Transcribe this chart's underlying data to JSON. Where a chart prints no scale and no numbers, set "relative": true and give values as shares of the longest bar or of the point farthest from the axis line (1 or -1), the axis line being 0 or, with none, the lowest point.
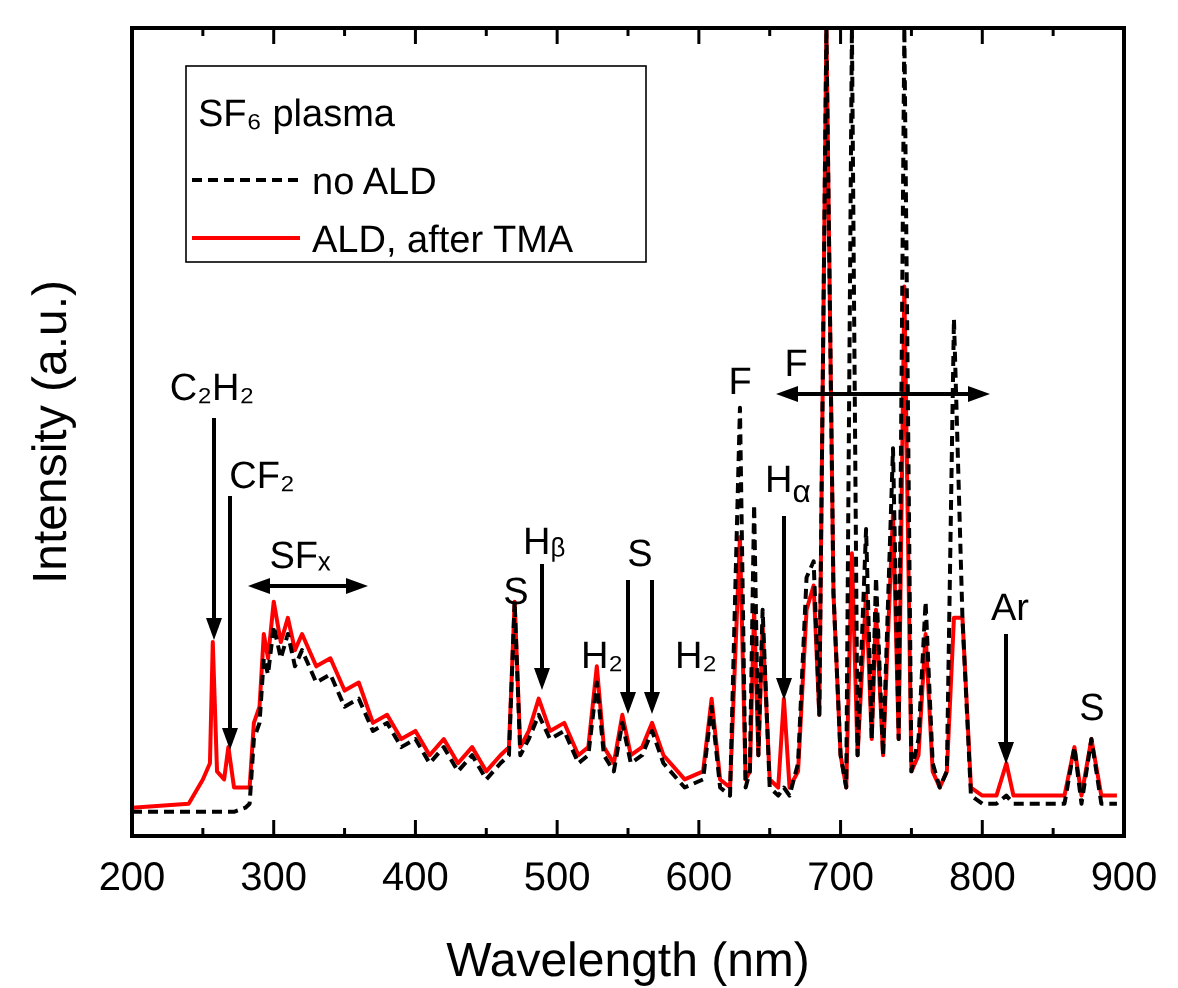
{
  "chart_data": {
    "type": "line",
    "relative": true,
    "xlabel": "Wavelength (nm)",
    "ylabel": "Intensity (a.u.)",
    "legend_title": "SF₆ plasma",
    "legend": "top left",
    "xlim": [
      200,
      900
    ],
    "xticks": [
      200,
      300,
      400,
      500,
      600,
      700,
      800,
      900
    ],
    "x": [
      200,
      240,
      250,
      255,
      257,
      260,
      265,
      268,
      272,
      280,
      283,
      286,
      290,
      293,
      296,
      300,
      305,
      310,
      315,
      320,
      330,
      340,
      350,
      360,
      370,
      380,
      390,
      400,
      410,
      420,
      430,
      440,
      450,
      460,
      466,
      470,
      474,
      480,
      487,
      495,
      505,
      515,
      522,
      528,
      533,
      540,
      546,
      552,
      560,
      567,
      575,
      590,
      603,
      609,
      615,
      622,
      629,
      633,
      636,
      639,
      642,
      645,
      650,
      656,
      660,
      664,
      670,
      676,
      681,
      685,
      690,
      695,
      700,
      704,
      708,
      712,
      718,
      722,
      725,
      730,
      737,
      741,
      745,
      750,
      755,
      760,
      765,
      770,
      775,
      780,
      786,
      792,
      800,
      810,
      817,
      822,
      835,
      850,
      858,
      865,
      870,
      877,
      884,
      895
    ],
    "series": [
      {
        "name": "no ALD",
        "color": "#000000",
        "line_style": "dashed",
        "values": [
          0.03,
          0.03,
          0.03,
          0.03,
          0.03,
          0.03,
          0.03,
          0.03,
          0.03,
          0.035,
          0.04,
          0.12,
          0.14,
          0.22,
          0.2,
          0.26,
          0.22,
          0.25,
          0.21,
          0.23,
          0.19,
          0.2,
          0.16,
          0.17,
          0.13,
          0.14,
          0.11,
          0.12,
          0.09,
          0.11,
          0.08,
          0.1,
          0.07,
          0.09,
          0.1,
          0.29,
          0.1,
          0.12,
          0.15,
          0.12,
          0.13,
          0.09,
          0.1,
          0.19,
          0.1,
          0.08,
          0.14,
          0.09,
          0.1,
          0.13,
          0.09,
          0.06,
          0.07,
          0.16,
          0.06,
          0.05,
          0.53,
          0.06,
          0.08,
          0.41,
          0.1,
          0.28,
          0.06,
          0.05,
          0.06,
          0.05,
          0.09,
          0.32,
          0.34,
          0.15,
          1,
          0.3,
          0.1,
          0.06,
          1,
          0.1,
          0.38,
          0.12,
          0.32,
          0.1,
          0.48,
          0.12,
          1,
          0.08,
          0.12,
          0.29,
          0.09,
          0.06,
          0.08,
          0.64,
          0.27,
          0.05,
          0.04,
          0.04,
          0.05,
          0.04,
          0.04,
          0.04,
          0.04,
          0.11,
          0.04,
          0.12,
          0.04,
          0.04
        ]
      },
      {
        "name": "ALD, after TMA",
        "color": "#ff0000",
        "line_style": "solid",
        "values": [
          0.035,
          0.04,
          0.07,
          0.09,
          0.24,
          0.08,
          0.07,
          0.11,
          0.06,
          0.06,
          0.06,
          0.14,
          0.16,
          0.25,
          0.22,
          0.29,
          0.24,
          0.27,
          0.23,
          0.25,
          0.21,
          0.22,
          0.18,
          0.19,
          0.14,
          0.15,
          0.12,
          0.13,
          0.1,
          0.12,
          0.09,
          0.11,
          0.08,
          0.1,
          0.11,
          0.29,
          0.11,
          0.13,
          0.17,
          0.13,
          0.14,
          0.1,
          0.11,
          0.21,
          0.11,
          0.09,
          0.15,
          0.1,
          0.11,
          0.14,
          0.1,
          0.07,
          0.08,
          0.17,
          0.07,
          0.06,
          0.37,
          0.07,
          0.08,
          0.28,
          0.1,
          0.26,
          0.07,
          0.06,
          0.17,
          0.06,
          0.08,
          0.28,
          0.31,
          0.15,
          1,
          0.3,
          0.1,
          0.06,
          0.35,
          0.1,
          0.3,
          0.12,
          0.28,
          0.1,
          0.4,
          0.12,
          0.68,
          0.08,
          0.1,
          0.25,
          0.08,
          0.06,
          0.08,
          0.27,
          0.27,
          0.06,
          0.05,
          0.05,
          0.09,
          0.05,
          0.05,
          0.05,
          0.05,
          0.11,
          0.05,
          0.12,
          0.05,
          0.05
        ]
      }
    ],
    "annotations": [
      "C₂H₂",
      "CF₂",
      "SFₓ",
      "S",
      "Hᵦ",
      "H₂",
      "S",
      "H₂",
      "F",
      "F",
      "H$_{α}$",
      "Ar",
      "S"
    ]
  }
}
